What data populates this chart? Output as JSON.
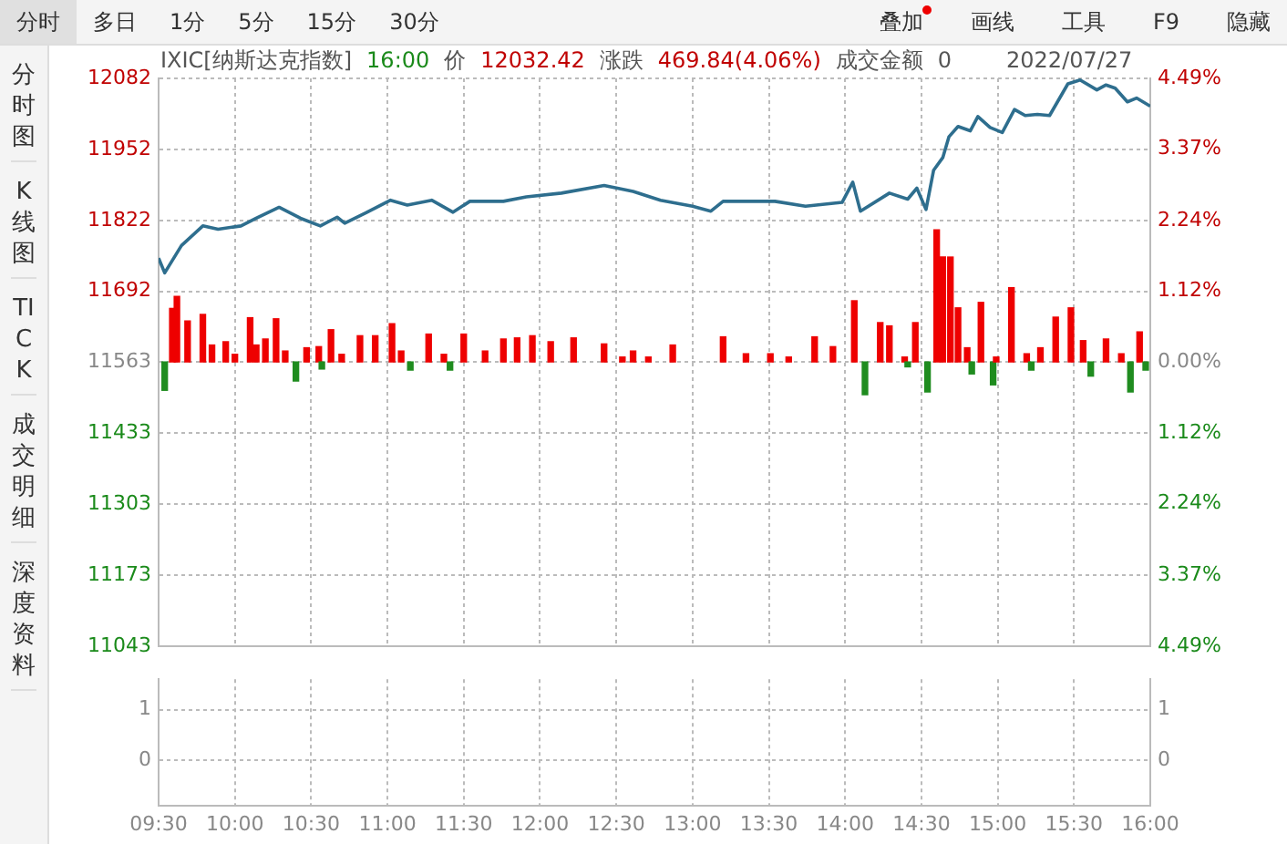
{
  "chart_data": [
    {
      "type": "line",
      "title": "IXIC[纳斯达克指数]",
      "annotations": [
        "16:00",
        "价",
        "12032.42",
        "涨跌",
        "469.84(4.06%)",
        "成交金额",
        "0",
        "2022/07/27",
        "分时",
        "多日",
        "1分",
        "5分",
        "15分",
        "30分",
        "叠加",
        "画线",
        "工具",
        "F9",
        "隐藏",
        "分时图",
        "K线图",
        "TICK",
        "成交明细",
        "深度资料"
      ],
      "xlim": [
        9.5,
        16
      ],
      "xticks": [
        {
          "value": 9.5,
          "label": null
        },
        {
          "value": 10,
          "label": null
        },
        {
          "value": 10.5,
          "label": null
        },
        {
          "value": 11,
          "label": null
        },
        {
          "value": 11.5,
          "label": null
        },
        {
          "value": 12,
          "label": null
        },
        {
          "value": 12.5,
          "label": null
        },
        {
          "value": 13,
          "label": null
        },
        {
          "value": 13.5,
          "label": null
        },
        {
          "value": 14,
          "label": null
        },
        {
          "value": 14.5,
          "label": null
        },
        {
          "value": 15,
          "label": null
        },
        {
          "value": 15.5,
          "label": null
        },
        {
          "value": 16,
          "label": null
        }
      ],
      "ylim": [
        11043,
        12082
      ],
      "yticks": [
        11043,
        11173,
        11303,
        11433,
        11563,
        11692,
        11822,
        11952,
        12082
      ],
      "y2lim": [
        -4.49,
        4.49
      ],
      "y2ticks": [
        {
          "value": -4.49,
          "label": "4.49%"
        },
        {
          "value": -3.37,
          "label": "3.37%"
        },
        {
          "value": -2.24,
          "label": "2.24%"
        },
        {
          "value": -1.12,
          "label": "1.12%"
        },
        {
          "value": 0,
          "label": "0.00%"
        },
        {
          "value": 1.12,
          "label": "1.12%"
        },
        {
          "value": 2.24,
          "label": "2.24%"
        },
        {
          "value": 3.37,
          "label": "3.37%"
        },
        {
          "value": 4.49,
          "label": "4.49%"
        }
      ],
      "grid": true,
      "tick_labels": "y",
      "marker": "none",
      "series": [
        {
          "color": "#2e6e8e",
          "x": [
            9.5,
            9.54,
            9.65,
            9.79,
            9.89,
            10.04,
            10.14,
            10.29,
            10.43,
            10.56,
            10.67,
            10.72,
            10.86,
            11.02,
            11.13,
            11.29,
            11.43,
            11.54,
            11.76,
            11.91,
            12.14,
            12.42,
            12.61,
            12.79,
            13.0,
            13.12,
            13.2,
            13.54,
            13.74,
            13.98,
            14.05,
            14.1,
            14.29,
            14.41,
            14.47,
            14.53,
            14.58,
            14.64,
            14.68,
            14.74,
            14.82,
            14.87,
            14.95,
            15.03,
            15.11,
            15.18,
            15.26,
            15.34,
            15.46,
            15.54,
            15.65,
            15.71,
            15.77,
            15.85,
            15.91,
            16.0
          ],
          "values": [
            11753,
            11726,
            11776,
            11812,
            11806,
            11812,
            11826,
            11846,
            11826,
            11812,
            11828,
            11817,
            11836,
            11859,
            11850,
            11859,
            11837,
            11857,
            11857,
            11865,
            11872,
            11886,
            11875,
            11859,
            11848,
            11839,
            11857,
            11857,
            11848,
            11855,
            11892,
            11839,
            11872,
            11861,
            11881,
            11842,
            11914,
            11937,
            11975,
            11994,
            11986,
            12012,
            11992,
            11983,
            12025,
            12014,
            12016,
            12014,
            12072,
            12079,
            12061,
            12070,
            12064,
            12039,
            12046,
            12031
          ]
        },
        {
          "type": "bar",
          "x": [
            9.54,
            9.59,
            9.62,
            9.69,
            9.79,
            9.85,
            9.94,
            10.0,
            10.1,
            10.14,
            10.2,
            10.27,
            10.33,
            10.4,
            10.47,
            10.55,
            10.57,
            10.63,
            10.7,
            10.82,
            10.92,
            11.03,
            11.09,
            11.15,
            11.27,
            11.37,
            11.41,
            11.5,
            11.64,
            11.76,
            11.85,
            11.95,
            12.07,
            12.22,
            12.42,
            12.54,
            12.61,
            12.71,
            12.87,
            13.2,
            13.35,
            13.51,
            13.63,
            13.8,
            13.92,
            14.06,
            14.13,
            14.23,
            14.29,
            14.39,
            14.41,
            14.46,
            14.54,
            14.6,
            14.64,
            14.69,
            14.74,
            14.8,
            14.83,
            14.89,
            14.97,
            14.99,
            15.09,
            15.19,
            15.22,
            15.28,
            15.38,
            15.48,
            15.56,
            15.61,
            15.71,
            15.81,
            15.87,
            15.93,
            15.97
          ],
          "values": [
            -52,
            98,
            120,
            75,
            87,
            31,
            37,
            14,
            81,
            31,
            42,
            79,
            20,
            -35,
            26,
            28,
            -13,
            59,
            14,
            48,
            48,
            70,
            20,
            -15,
            51,
            14,
            -15,
            51,
            20,
            42,
            44,
            48,
            37,
            44,
            33,
            9,
            20,
            9,
            31,
            46,
            15,
            15,
            9,
            46,
            28,
            112,
            -60,
            72,
            66,
            9,
            -9,
            72,
            -55,
            242,
            192,
            192,
            99,
            26,
            -22,
            109,
            -42,
            9,
            136,
            15,
            -15,
            26,
            82,
            99,
            39,
            -26,
            42,
            15,
            -55,
            55,
            -15
          ],
          "base": [
            11563,
            11563,
            11563,
            11563,
            11563,
            11563,
            11563,
            11563,
            11563,
            11563,
            11563,
            11563,
            11563,
            11563,
            11563,
            11563,
            11563,
            11563,
            11563,
            11563,
            11563,
            11563,
            11563,
            11563,
            11563,
            11563,
            11563,
            11563,
            11563,
            11563,
            11563,
            11563,
            11563,
            11563,
            11563,
            11563,
            11563,
            11563,
            11563,
            11563,
            11563,
            11563,
            11563,
            11563,
            11563,
            11563,
            11563,
            11563,
            11563,
            11563,
            11563,
            11563,
            11563,
            11563,
            11563,
            11563,
            11563,
            11563,
            11563,
            11563,
            11563,
            11563,
            11563,
            11563,
            11563,
            11563,
            11563,
            11563,
            11563,
            11563,
            11563,
            11563,
            11563,
            11563,
            11563
          ],
          "colors": [
            "#1f8c1f",
            "#ee0000",
            "#ee0000",
            "#ee0000",
            "#ee0000",
            "#ee0000",
            "#ee0000",
            "#ee0000",
            "#ee0000",
            "#ee0000",
            "#ee0000",
            "#ee0000",
            "#ee0000",
            "#1f8c1f",
            "#ee0000",
            "#ee0000",
            "#1f8c1f",
            "#ee0000",
            "#ee0000",
            "#ee0000",
            "#ee0000",
            "#ee0000",
            "#ee0000",
            "#1f8c1f",
            "#ee0000",
            "#ee0000",
            "#1f8c1f",
            "#ee0000",
            "#ee0000",
            "#ee0000",
            "#ee0000",
            "#ee0000",
            "#ee0000",
            "#ee0000",
            "#ee0000",
            "#ee0000",
            "#ee0000",
            "#ee0000",
            "#ee0000",
            "#ee0000",
            "#ee0000",
            "#ee0000",
            "#ee0000",
            "#ee0000",
            "#ee0000",
            "#ee0000",
            "#1f8c1f",
            "#ee0000",
            "#ee0000",
            "#ee0000",
            "#1f8c1f",
            "#ee0000",
            "#1f8c1f",
            "#ee0000",
            "#ee0000",
            "#ee0000",
            "#ee0000",
            "#ee0000",
            "#1f8c1f",
            "#ee0000",
            "#1f8c1f",
            "#ee0000",
            "#ee0000",
            "#ee0000",
            "#1f8c1f",
            "#ee0000",
            "#ee0000",
            "#ee0000",
            "#ee0000",
            "#1f8c1f",
            "#ee0000",
            "#ee0000",
            "#1f8c1f",
            "#ee0000",
            "#1f8c1f"
          ]
        }
      ]
    },
    {
      "type": "bar",
      "xlim": [
        9.5,
        16
      ],
      "xticks": [
        {
          "value": 9.5,
          "label": "09:30"
        },
        {
          "value": 10,
          "label": "10:00"
        },
        {
          "value": 10.5,
          "label": "10:30"
        },
        {
          "value": 11,
          "label": "11:00"
        },
        {
          "value": 11.5,
          "label": "11:30"
        },
        {
          "value": 12,
          "label": "12:00"
        },
        {
          "value": 12.5,
          "label": "12:30"
        },
        {
          "value": 13,
          "label": "13:00"
        },
        {
          "value": 13.5,
          "label": "13:30"
        },
        {
          "value": 14,
          "label": "14:00"
        },
        {
          "value": 14.5,
          "label": "14:30"
        },
        {
          "value": 15,
          "label": "15:00"
        },
        {
          "value": 15.5,
          "label": "15:30"
        },
        {
          "value": 16,
          "label": "16:00"
        }
      ],
      "ylim": [
        -0.9,
        1.6
      ],
      "yticks": [
        0,
        1
      ],
      "y2lim": [
        -0.9,
        1.6
      ],
      "y2ticks": [
        0,
        1
      ],
      "grid": true
    }
  ]
}
